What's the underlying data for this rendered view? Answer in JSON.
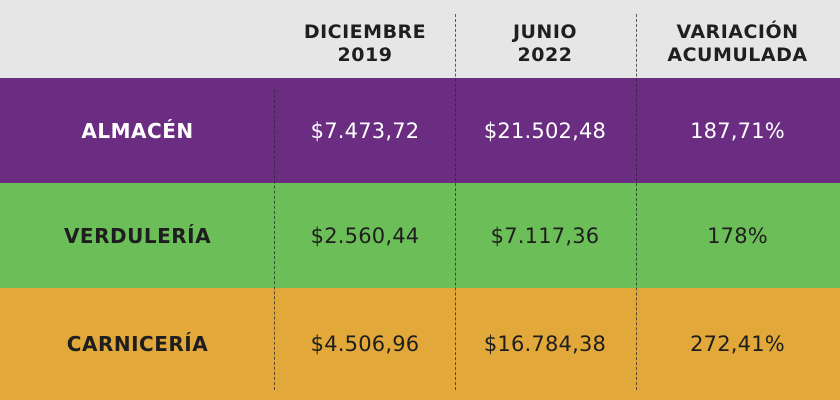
{
  "chart_data": {
    "type": "table",
    "columns": [
      {
        "line1": "DICIEMBRE",
        "line2": "2019"
      },
      {
        "line1": "JUNIO",
        "line2": "2022"
      },
      {
        "line1": "VARIACIÓN",
        "line2": "ACUMULADA"
      }
    ],
    "rows": [
      {
        "label": "ALMACÉN",
        "dic2019": "$7.473,72",
        "jun2022": "$21.502,48",
        "variacion": "187,71%",
        "color": "#6b2d82"
      },
      {
        "label": "VERDULERÍA",
        "dic2019": "$2.560,44",
        "jun2022": "$7.117,36",
        "variacion": "178%",
        "color": "#6cbf58"
      },
      {
        "label": "CARNICERÍA",
        "dic2019": "$4.506,96",
        "jun2022": "$16.784,38",
        "variacion": "272,41%",
        "color": "#e2a83a"
      }
    ]
  }
}
